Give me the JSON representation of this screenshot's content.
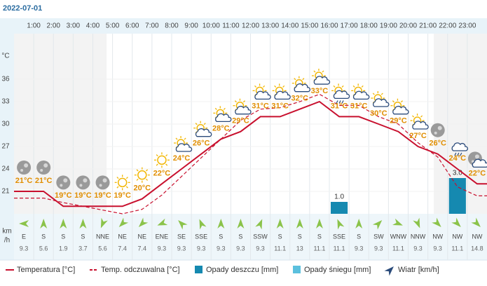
{
  "chart_data": {
    "type": "line",
    "title": "2022-07-01",
    "categories": [
      null,
      "1:00",
      "2:00",
      "3:00",
      "4:00",
      "5:00",
      "6:00",
      "7:00",
      "8:00",
      "9:00",
      "10:00",
      "11:00",
      "12:00",
      "13:00",
      "14:00",
      "15:00",
      "16:00",
      "17:00",
      "18:00",
      "19:00",
      "20:00",
      "21:00",
      "22:00",
      "23:00"
    ],
    "y_label": "°C",
    "ylim": [
      18,
      42.1
    ],
    "yticks": [
      21,
      24,
      27,
      30,
      33,
      36
    ],
    "grid": true,
    "series": [
      {
        "name": "Temperatura [°C]",
        "color": "#c8102e",
        "values": [
          21,
          21,
          19,
          19,
          19,
          19,
          20,
          22,
          24,
          26,
          28,
          29,
          31,
          31,
          32,
          33,
          31,
          31,
          30,
          29,
          27,
          26,
          24,
          22
        ],
        "value_labels": [
          "21°C",
          "21°C",
          "19°C",
          "19°C",
          "19°C",
          "19°C",
          "20°C",
          "22°C",
          "24°C",
          "26°C",
          "28°C",
          "29°C",
          "31°C",
          "31°C",
          "32°C",
          "33°C",
          "31°C",
          "31°C",
          "30°C",
          "29°C",
          "27°C",
          "26°C",
          "24°C",
          "22°C"
        ]
      },
      {
        "name": "Temp. odczuwalna [°C]",
        "color": "#c8102e",
        "dashed": true,
        "values": [
          20.1,
          20.1,
          19.5,
          19,
          18.5,
          18,
          18.6,
          20.5,
          23,
          25.5,
          28,
          30.5,
          32,
          32.2,
          33,
          34,
          32.5,
          32.5,
          31,
          30,
          27.5,
          25.6,
          21.6,
          20.4
        ]
      },
      {
        "name": "Opady deszczu [mm]",
        "color": "#1589b0",
        "type": "bar",
        "values": [
          0,
          0,
          0,
          0,
          0,
          0,
          0,
          0,
          0,
          0,
          0,
          0,
          0,
          0,
          0,
          0,
          1.0,
          0,
          0,
          0,
          0,
          0,
          3.0,
          0
        ],
        "value_labels": [
          null,
          null,
          null,
          null,
          null,
          null,
          null,
          null,
          null,
          null,
          null,
          null,
          null,
          null,
          null,
          null,
          "1.0",
          null,
          null,
          null,
          null,
          null,
          "3.0",
          null
        ]
      },
      {
        "name": "Opady śniegu [mm]",
        "color": "#5bc0de",
        "type": "bar",
        "values": [
          0,
          0,
          0,
          0,
          0,
          0,
          0,
          0,
          0,
          0,
          0,
          0,
          0,
          0,
          0,
          0,
          0,
          0,
          0,
          0,
          0,
          0,
          0,
          0
        ]
      },
      {
        "name": "Wiatr [km/h]",
        "color": "#8bc34a",
        "type": "wind",
        "unit_lines": [
          "km",
          "/h"
        ],
        "directions": [
          "E",
          "S",
          "S",
          "S",
          "NNE",
          "NE",
          "NE",
          "ENE",
          "SE",
          "SSE",
          "S",
          "S",
          "SSW",
          "S",
          "S",
          "S",
          "SSE",
          "S",
          "SW",
          "WNW",
          "NNW",
          "NW",
          "NW",
          "NW"
        ],
        "values": [
          9.3,
          5.6,
          1.9,
          3.7,
          5.6,
          7.4,
          7.4,
          9.3,
          9.3,
          9.3,
          9.3,
          9.3,
          9.3,
          11.1,
          13,
          11.1,
          11.1,
          9.3,
          9.3,
          11.1,
          9.3,
          9.3,
          11.1,
          14.8
        ]
      }
    ]
  }
}
